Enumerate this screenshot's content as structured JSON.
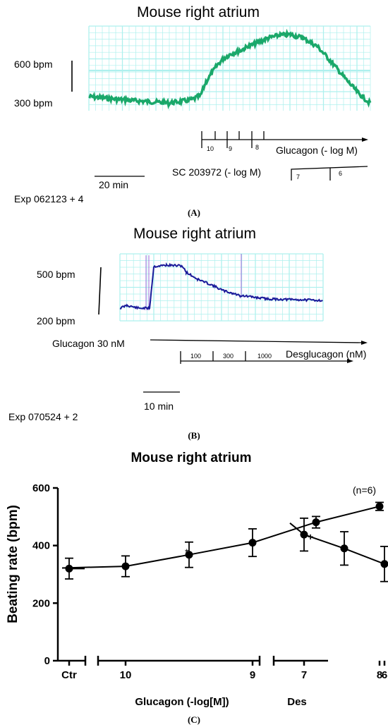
{
  "panel_a": {
    "title": "Mouse right atrium",
    "upper_label": "600 bpm",
    "lower_label": "300 bpm",
    "time_scale": "20 min",
    "exp_label": "Exp 062123 + 4",
    "glucagon_label": "Glucagon (- log M)",
    "glucagon_ticks": [
      "10",
      "9",
      "8"
    ],
    "sc_label": "SC 203972 (- log M)",
    "sc_ticks": [
      "7",
      "6"
    ],
    "panel_label": "(A)",
    "grid_color": "#aef0ee",
    "trace_color": "#1aa86a"
  },
  "panel_b": {
    "title": "Mouse right atrium",
    "upper_label": "500 bpm",
    "lower_label": "200 bpm",
    "glucagon_label": "Glucagon 30 nM",
    "desglucagon_label": "Desglucagon (nM)",
    "des_ticks": [
      "100",
      "300",
      "1000"
    ],
    "time_scale": "10 min",
    "exp_label": "Exp 070524 + 2",
    "panel_label": "(B)",
    "grid_color": "#aef0ee",
    "trace_color": "#1a1a9a"
  },
  "panel_c": {
    "panel_label": "(C)",
    "n_label": "(n=6)",
    "sig_marks": [
      "*",
      "+"
    ]
  },
  "chart_data": {
    "type": "line",
    "title": "Mouse right atrium",
    "ylabel": "Beating rate (bpm)",
    "xlabel": "Glucagon (-log[M])",
    "ylim": [
      0,
      600
    ],
    "yticks": [
      "0",
      "200",
      "400",
      "600"
    ],
    "xtick_labels": [
      "Ctr",
      "10",
      "9",
      "8",
      "7",
      "6"
    ],
    "group_labels": [
      "Ctr",
      "Glucagon (-log[M])",
      "Des"
    ],
    "segments": [
      {
        "group": "Ctr",
        "x": [
          "Ctr"
        ],
        "y": [
          320
        ],
        "err": [
          36
        ]
      },
      {
        "group": "Glucagon",
        "x": [
          10.5,
          10,
          9.5,
          9,
          8.5,
          8
        ],
        "y": [
          322,
          328,
          368,
          410,
          481,
          536
        ],
        "err": [
          0,
          36,
          44,
          48,
          20,
          14
        ]
      },
      {
        "group": "Des",
        "x": [
          7,
          6.5,
          6
        ],
        "y": [
          438,
          390,
          336
        ],
        "err": [
          57,
          58,
          61
        ]
      }
    ],
    "grid": false
  }
}
